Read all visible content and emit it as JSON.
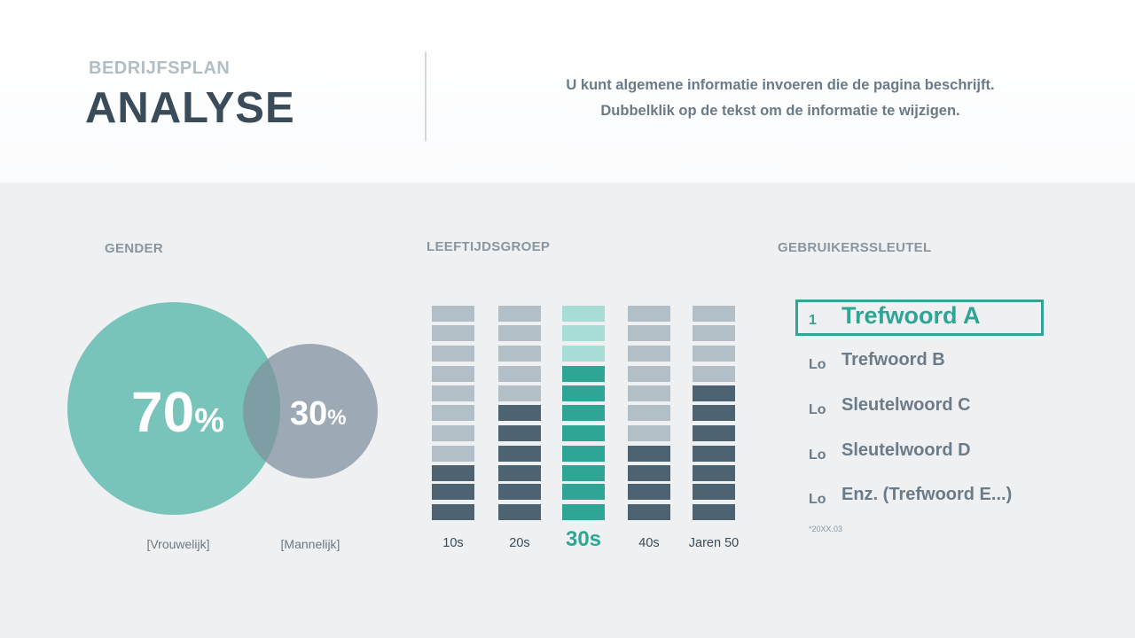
{
  "header": {
    "subtitle": "BEDRIJFSPLAN",
    "title": "ANALYSE",
    "description_line1": "U kunt algemene informatie invoeren die de pagina beschrijft.",
    "description_line2": "Dubbelklik op de tekst om de informatie te wijzigen."
  },
  "gender": {
    "title": "GENDER",
    "female_value": "70",
    "male_value": "30",
    "unit": "%",
    "female_label": "[Vrouwelijk]",
    "male_label": "[Mannelijk]"
  },
  "age": {
    "title": "LEEFTIJDSGROEP"
  },
  "keywords": {
    "title": "GEBRUIKERSSLEUTEL",
    "items": [
      {
        "rank": "1",
        "text": "Trefwoord A"
      },
      {
        "rank": "Lo",
        "text": "Trefwoord B"
      },
      {
        "rank": "Lo",
        "text": "Sleutelwoord C"
      },
      {
        "rank": "Lo",
        "text": "Sleutelwoord D"
      },
      {
        "rank": "Lo",
        "text": "Enz. (Trefwoord E...)"
      }
    ],
    "footnote": "*20XX.03"
  },
  "colors": {
    "accent": "#2fa595",
    "accent_light": "#a8ddd5",
    "dark": "#4d6372",
    "light": "#b2bfc7"
  },
  "chart_data": [
    {
      "type": "pie",
      "title": "GENDER",
      "categories": [
        "[Vrouwelijk]",
        "[Mannelijk]"
      ],
      "values": [
        70,
        30
      ]
    },
    {
      "type": "bar",
      "title": "LEEFTIJDSGROEP",
      "categories": [
        "10s",
        "20s",
        "30s",
        "40s",
        "Jaren 50"
      ],
      "values": [
        3,
        6,
        8,
        4,
        7
      ],
      "max_segments": 11,
      "highlight": "30s"
    }
  ]
}
